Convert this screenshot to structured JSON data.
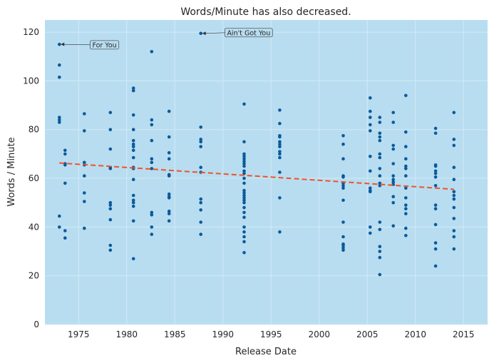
{
  "chart_data": {
    "type": "scatter",
    "title": "Words/Minute has also decreased.",
    "xlabel": "Release Date",
    "ylabel": "Words / Minute",
    "xlim": [
      1971.5,
      2017.5
    ],
    "ylim": [
      0,
      125
    ],
    "x_ticks": [
      1975,
      1980,
      1985,
      1990,
      1995,
      2000,
      2005,
      2010,
      2015
    ],
    "y_ticks": [
      0,
      20,
      40,
      60,
      80,
      100,
      120
    ],
    "grid": true,
    "colors": {
      "background": "#b8ddf0",
      "grid": "#d2eaf6",
      "points": "#0a5a9c",
      "trend": "#f0522a"
    },
    "trend_line": {
      "x": [
        1973,
        2014
      ],
      "y": [
        66.3,
        55.5
      ]
    },
    "annotations": [
      {
        "text": "For You",
        "x": 1973,
        "y": 115,
        "text_x": 1976.2,
        "text_y": 114.8
      },
      {
        "text": "Ain't Got You",
        "x": 1987.7,
        "y": 119.5,
        "text_x": 1990.2,
        "text_y": 119.8
      }
    ],
    "points": [
      [
        1973.0,
        115
      ],
      [
        1973.0,
        106.5
      ],
      [
        1973.0,
        101.5
      ],
      [
        1973.0,
        85
      ],
      [
        1973.0,
        84
      ],
      [
        1973.0,
        83
      ],
      [
        1973.0,
        44.5
      ],
      [
        1973.0,
        40
      ],
      [
        1973.6,
        71.5
      ],
      [
        1973.6,
        70
      ],
      [
        1973.6,
        66
      ],
      [
        1973.6,
        65.5
      ],
      [
        1973.6,
        58
      ],
      [
        1973.6,
        38.5
      ],
      [
        1973.6,
        35.5
      ],
      [
        1975.6,
        86.5
      ],
      [
        1975.6,
        79.5
      ],
      [
        1975.6,
        66.5
      ],
      [
        1975.6,
        65.5
      ],
      [
        1975.6,
        61
      ],
      [
        1975.6,
        54
      ],
      [
        1975.6,
        50.5
      ],
      [
        1975.6,
        39.5
      ],
      [
        1978.3,
        87
      ],
      [
        1978.3,
        80
      ],
      [
        1978.3,
        72
      ],
      [
        1978.3,
        64.5
      ],
      [
        1978.3,
        64
      ],
      [
        1978.3,
        50
      ],
      [
        1978.3,
        49
      ],
      [
        1978.3,
        47.5
      ],
      [
        1978.3,
        43
      ],
      [
        1978.3,
        32.5
      ],
      [
        1978.3,
        30.5
      ],
      [
        1980.7,
        97
      ],
      [
        1980.7,
        96
      ],
      [
        1980.7,
        86
      ],
      [
        1980.7,
        80
      ],
      [
        1980.7,
        75.5
      ],
      [
        1980.7,
        74
      ],
      [
        1980.7,
        73
      ],
      [
        1980.7,
        71.5
      ],
      [
        1980.7,
        68.5
      ],
      [
        1980.7,
        64.5
      ],
      [
        1980.7,
        64
      ],
      [
        1980.7,
        59.5
      ],
      [
        1980.7,
        53
      ],
      [
        1980.7,
        51
      ],
      [
        1980.7,
        50
      ],
      [
        1980.7,
        48.5
      ],
      [
        1980.7,
        42.5
      ],
      [
        1980.7,
        27
      ],
      [
        1982.6,
        112
      ],
      [
        1982.6,
        84
      ],
      [
        1982.6,
        82
      ],
      [
        1982.6,
        75.5
      ],
      [
        1982.6,
        68
      ],
      [
        1982.6,
        66.5
      ],
      [
        1982.6,
        64
      ],
      [
        1982.6,
        46
      ],
      [
        1982.6,
        45
      ],
      [
        1982.6,
        40
      ],
      [
        1982.6,
        37
      ],
      [
        1984.4,
        87.5
      ],
      [
        1984.4,
        77
      ],
      [
        1984.4,
        70.5
      ],
      [
        1984.4,
        68
      ],
      [
        1984.4,
        61.5
      ],
      [
        1984.4,
        61
      ],
      [
        1984.4,
        53.5
      ],
      [
        1984.4,
        52.5
      ],
      [
        1984.4,
        52
      ],
      [
        1984.4,
        46.5
      ],
      [
        1984.4,
        45.5
      ],
      [
        1984.4,
        42.5
      ],
      [
        1987.7,
        119.5
      ],
      [
        1987.7,
        81
      ],
      [
        1987.7,
        76
      ],
      [
        1987.7,
        75
      ],
      [
        1987.7,
        73
      ],
      [
        1987.7,
        64.5
      ],
      [
        1987.7,
        62.5
      ],
      [
        1987.7,
        51.5
      ],
      [
        1987.7,
        50
      ],
      [
        1987.7,
        47
      ],
      [
        1987.7,
        42
      ],
      [
        1987.7,
        37
      ],
      [
        1992.2,
        90.5
      ],
      [
        1992.2,
        75
      ],
      [
        1992.2,
        70
      ],
      [
        1992.2,
        69
      ],
      [
        1992.2,
        68
      ],
      [
        1992.2,
        67
      ],
      [
        1992.2,
        66
      ],
      [
        1992.2,
        65
      ],
      [
        1992.2,
        63
      ],
      [
        1992.2,
        62
      ],
      [
        1992.2,
        60
      ],
      [
        1992.2,
        58
      ],
      [
        1992.2,
        55
      ],
      [
        1992.2,
        54
      ],
      [
        1992.2,
        53
      ],
      [
        1992.2,
        52
      ],
      [
        1992.2,
        51
      ],
      [
        1992.2,
        50
      ],
      [
        1992.2,
        48
      ],
      [
        1992.2,
        46
      ],
      [
        1992.2,
        44
      ],
      [
        1992.2,
        40
      ],
      [
        1992.2,
        38
      ],
      [
        1992.2,
        36
      ],
      [
        1992.2,
        34
      ],
      [
        1992.2,
        29.5
      ],
      [
        1995.9,
        88
      ],
      [
        1995.9,
        82.5
      ],
      [
        1995.9,
        77.5
      ],
      [
        1995.9,
        77
      ],
      [
        1995.9,
        75
      ],
      [
        1995.9,
        74
      ],
      [
        1995.9,
        73
      ],
      [
        1995.9,
        71
      ],
      [
        1995.9,
        70
      ],
      [
        1995.9,
        68.5
      ],
      [
        1995.9,
        62.5
      ],
      [
        1995.9,
        52
      ],
      [
        1995.9,
        38
      ],
      [
        2002.5,
        77.5
      ],
      [
        2002.5,
        74
      ],
      [
        2002.5,
        68
      ],
      [
        2002.5,
        61
      ],
      [
        2002.5,
        60.5
      ],
      [
        2002.5,
        58
      ],
      [
        2002.5,
        57
      ],
      [
        2002.5,
        56
      ],
      [
        2002.5,
        51
      ],
      [
        2002.5,
        42
      ],
      [
        2002.5,
        36
      ],
      [
        2002.5,
        33
      ],
      [
        2002.5,
        32.5
      ],
      [
        2002.5,
        31.5
      ],
      [
        2002.5,
        30.5
      ],
      [
        2005.3,
        93
      ],
      [
        2005.3,
        87.5
      ],
      [
        2005.3,
        85
      ],
      [
        2005.3,
        82
      ],
      [
        2005.3,
        79.5
      ],
      [
        2005.3,
        69
      ],
      [
        2005.3,
        63
      ],
      [
        2005.3,
        56
      ],
      [
        2005.3,
        55
      ],
      [
        2005.3,
        54.5
      ],
      [
        2005.3,
        40
      ],
      [
        2005.3,
        37.5
      ],
      [
        2006.3,
        85
      ],
      [
        2006.3,
        83
      ],
      [
        2006.3,
        78.5
      ],
      [
        2006.3,
        77
      ],
      [
        2006.3,
        75.5
      ],
      [
        2006.3,
        70
      ],
      [
        2006.3,
        68.5
      ],
      [
        2006.3,
        64
      ],
      [
        2006.3,
        61
      ],
      [
        2006.3,
        58
      ],
      [
        2006.3,
        57
      ],
      [
        2006.3,
        42
      ],
      [
        2006.3,
        39
      ],
      [
        2006.3,
        32
      ],
      [
        2006.3,
        30
      ],
      [
        2006.3,
        27.5
      ],
      [
        2006.3,
        20.5
      ],
      [
        2007.7,
        87
      ],
      [
        2007.7,
        83
      ],
      [
        2007.7,
        73.5
      ],
      [
        2007.7,
        72
      ],
      [
        2007.7,
        66
      ],
      [
        2007.7,
        61
      ],
      [
        2007.7,
        59.5
      ],
      [
        2007.7,
        58.5
      ],
      [
        2007.7,
        57.5
      ],
      [
        2007.7,
        52.5
      ],
      [
        2007.7,
        50
      ],
      [
        2007.7,
        40.5
      ],
      [
        2009.0,
        94
      ],
      [
        2009.0,
        79
      ],
      [
        2009.0,
        73
      ],
      [
        2009.0,
        68
      ],
      [
        2009.0,
        65
      ],
      [
        2009.0,
        64
      ],
      [
        2009.0,
        61
      ],
      [
        2009.0,
        56
      ],
      [
        2009.0,
        52
      ],
      [
        2009.0,
        49
      ],
      [
        2009.0,
        47.5
      ],
      [
        2009.0,
        45.5
      ],
      [
        2009.0,
        39.5
      ],
      [
        2009.0,
        36.5
      ],
      [
        2012.1,
        80.5
      ],
      [
        2012.1,
        78.5
      ],
      [
        2012.1,
        65.5
      ],
      [
        2012.1,
        65
      ],
      [
        2012.1,
        63
      ],
      [
        2012.1,
        62
      ],
      [
        2012.1,
        60.5
      ],
      [
        2012.1,
        57
      ],
      [
        2012.1,
        49
      ],
      [
        2012.1,
        47.5
      ],
      [
        2012.1,
        41
      ],
      [
        2012.1,
        33.5
      ],
      [
        2012.1,
        31
      ],
      [
        2012.1,
        24
      ],
      [
        2014.0,
        87
      ],
      [
        2014.0,
        76
      ],
      [
        2014.0,
        73.5
      ],
      [
        2014.0,
        64.5
      ],
      [
        2014.0,
        59.5
      ],
      [
        2014.0,
        54.5
      ],
      [
        2014.0,
        53
      ],
      [
        2014.0,
        51.5
      ],
      [
        2014.0,
        48
      ],
      [
        2014.0,
        43.5
      ],
      [
        2014.0,
        38.5
      ],
      [
        2014.0,
        36
      ],
      [
        2014.0,
        31
      ]
    ]
  }
}
